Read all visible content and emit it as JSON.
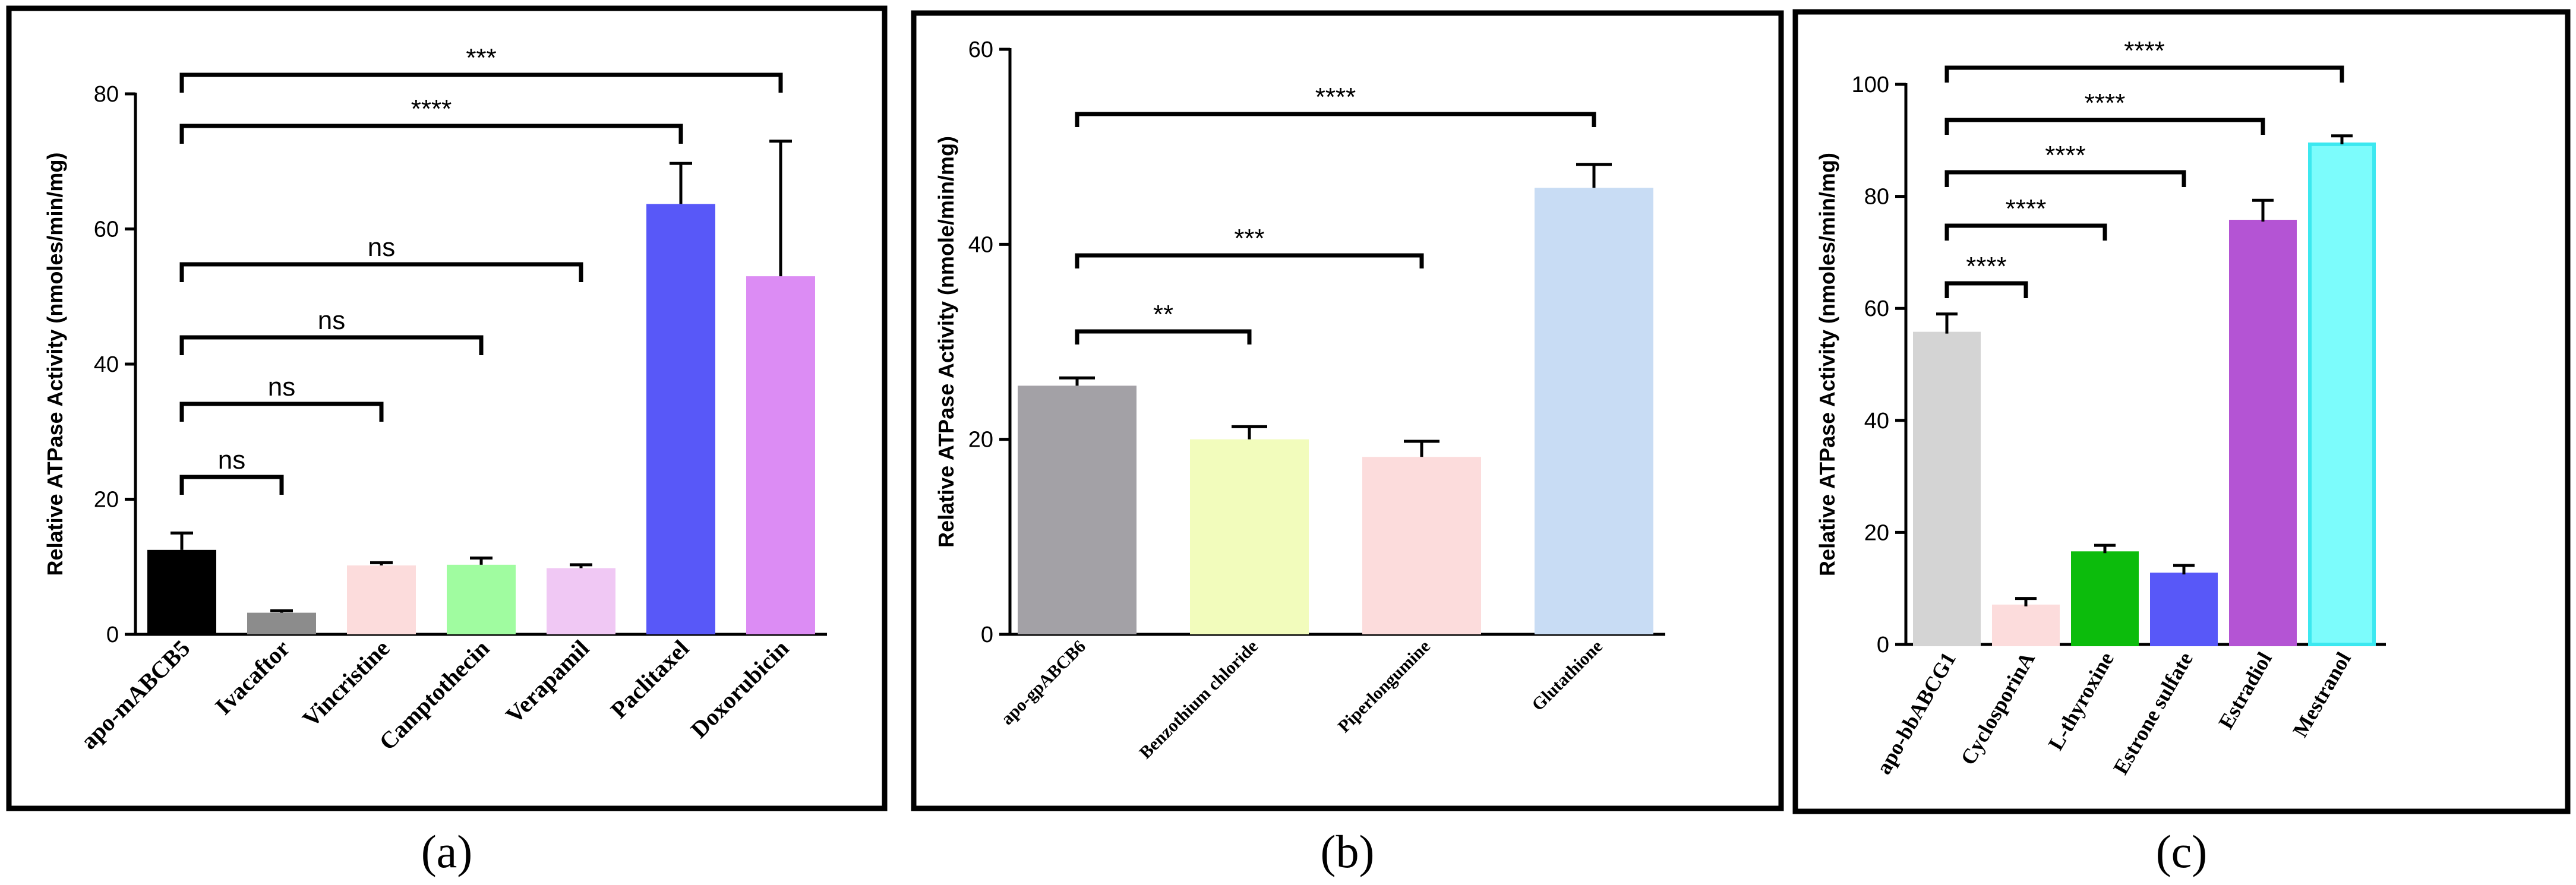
{
  "chart_data": [
    {
      "type": "bar",
      "panel_label": "(a)",
      "ylabel": "Relative ATPase Activity (nmoles/min/mg)",
      "ylim": [
        0,
        80
      ],
      "yticks": [
        0,
        20,
        40,
        60,
        80
      ],
      "categories": [
        "apo-mABCB5",
        "Ivacaftor",
        "Vincristine",
        "Camptothecin",
        "Verapamil",
        "Paclitaxel",
        "Doxorubicin"
      ],
      "values": [
        12.5,
        3.2,
        10.2,
        10.3,
        9.8,
        63.7,
        53.0
      ],
      "errors": [
        2.5,
        0.3,
        0.4,
        1.0,
        0.5,
        6.0,
        20.0
      ],
      "colors": [
        "#000000",
        "#8c8c8c",
        "#fcdcdc",
        "#a0fca0",
        "#f0c8f4",
        "#5858f8",
        "#dc8cf4"
      ],
      "significance": [
        {
          "from": 0,
          "to": 6,
          "label": "***"
        },
        {
          "from": 0,
          "to": 5,
          "label": "****"
        },
        {
          "from": 0,
          "to": 4,
          "label": "ns"
        },
        {
          "from": 0,
          "to": 3,
          "label": "ns"
        },
        {
          "from": 0,
          "to": 2,
          "label": "ns"
        },
        {
          "from": 0,
          "to": 1,
          "label": "ns"
        }
      ]
    },
    {
      "type": "bar",
      "panel_label": "(b)",
      "ylabel": "Relative ATPase Activity (nmole/min/mg)",
      "ylim": [
        0,
        60
      ],
      "yticks": [
        0,
        20,
        40,
        60
      ],
      "categories": [
        "apo-gpABCB6",
        "Benzothium chloride",
        "Piperlongumine",
        "Glutathione"
      ],
      "values": [
        25.5,
        20.0,
        18.2,
        45.8
      ],
      "errors": [
        0.8,
        1.3,
        1.6,
        2.4
      ],
      "colors": [
        "#a3a1a6",
        "#f2fcbc",
        "#fcdcdc",
        "#c8dcf4"
      ],
      "significance": [
        {
          "from": 0,
          "to": 3,
          "label": "****"
        },
        {
          "from": 0,
          "to": 2,
          "label": "***"
        },
        {
          "from": 0,
          "to": 1,
          "label": "**"
        }
      ]
    },
    {
      "type": "bar",
      "panel_label": "(c)",
      "ylabel": "Relative ATPase Activity (nmoles/min/mg)",
      "ylim": [
        0,
        100
      ],
      "yticks": [
        0,
        20,
        40,
        60,
        80,
        100
      ],
      "categories": [
        "apo-bbABCG1",
        "CyclosporinA",
        "L-thyroxine",
        "Estrone sulfate",
        "Estradiol",
        "Mestranol"
      ],
      "values": [
        55.5,
        6.8,
        16.3,
        12.5,
        75.5,
        89.3
      ],
      "errors": [
        3.5,
        1.4,
        1.4,
        1.6,
        3.8,
        1.5
      ],
      "colors": [
        "#d4d4d4",
        "#fcdcdc",
        "#0cbc0c",
        "#5858f8",
        "#b454d4",
        "#7cfcfc"
      ],
      "edges": [
        "#d4d4d4",
        "#fcdcdc",
        "#0cbc0c",
        "#5858f8",
        "#b454d4",
        "#3ce8f0"
      ],
      "significance": [
        {
          "from": 0,
          "to": 5,
          "label": "****"
        },
        {
          "from": 0,
          "to": 4,
          "label": "****"
        },
        {
          "from": 0,
          "to": 3,
          "label": "****"
        },
        {
          "from": 0,
          "to": 2,
          "label": "****"
        },
        {
          "from": 0,
          "to": 1,
          "label": "****"
        }
      ]
    }
  ]
}
